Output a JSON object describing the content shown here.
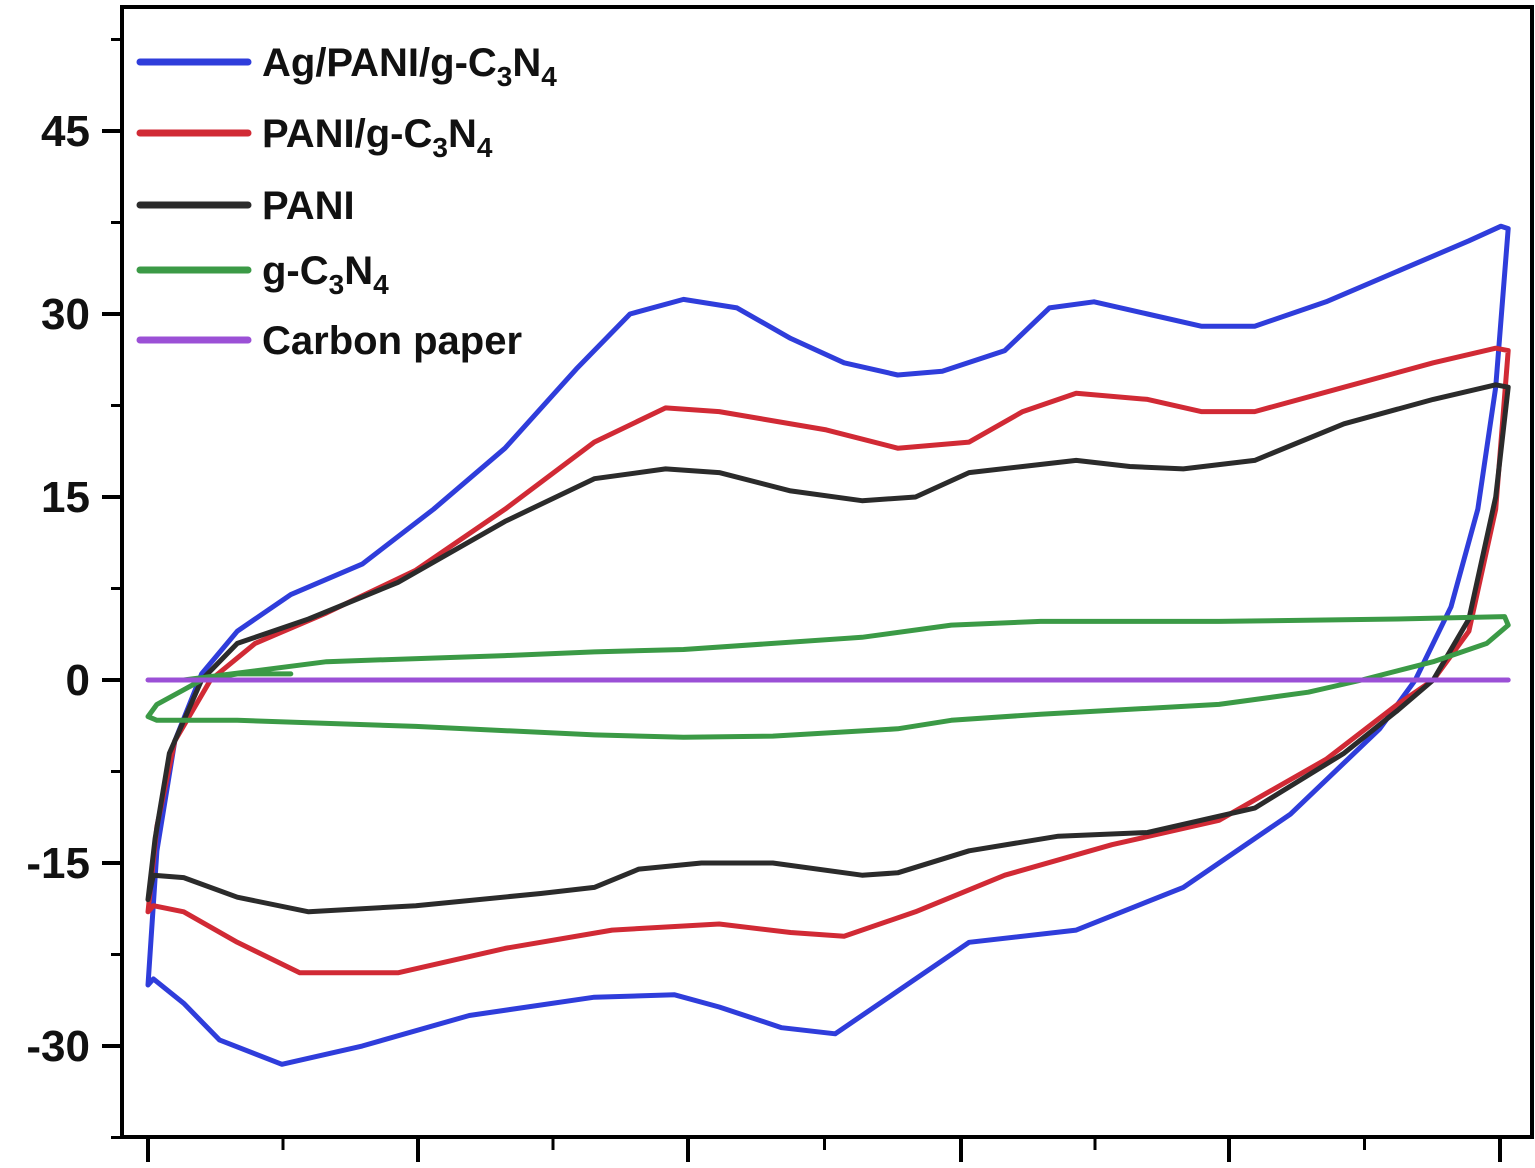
{
  "chart_data": {
    "type": "line",
    "title": "",
    "xlabel": "",
    "ylabel": "",
    "ylim": [
      -39,
      59
    ],
    "y_ticks": [
      {
        "value": 45,
        "label": "45"
      },
      {
        "value": 30,
        "label": "30"
      },
      {
        "value": 15,
        "label": "15"
      },
      {
        "value": 0,
        "label": "0"
      },
      {
        "value": -15,
        "label": "-15"
      },
      {
        "value": -30,
        "label": "-30"
      }
    ],
    "x_ticks": [
      0,
      1,
      2,
      3,
      4,
      5
    ],
    "x_tick_labels_visible": false,
    "legend_position": "top-left",
    "grid": false,
    "series": [
      {
        "key": "ag_pani_gc3n4",
        "name": "Ag/PANI/g-C3N4",
        "legend_parts": [
          "Ag/PANI/g-C",
          "3",
          "N",
          "4"
        ],
        "color": "#2f3ddb",
        "points": [
          [
            0,
            -25
          ],
          [
            0.03,
            -24.5
          ],
          [
            0.2,
            -26.5
          ],
          [
            0.4,
            -29.5
          ],
          [
            0.75,
            -31.5
          ],
          [
            1.2,
            -30
          ],
          [
            1.8,
            -27.5
          ],
          [
            2.5,
            -26
          ],
          [
            2.95,
            -25.8
          ],
          [
            3.2,
            -26.8
          ],
          [
            3.55,
            -28.5
          ],
          [
            3.85,
            -29
          ],
          [
            4.2,
            -25.5
          ],
          [
            4.6,
            -21.5
          ],
          [
            5.2,
            -20.5
          ],
          [
            5.8,
            -17
          ],
          [
            6.4,
            -11
          ],
          [
            6.9,
            -4
          ],
          [
            7.1,
            0
          ],
          [
            7.3,
            6
          ],
          [
            7.45,
            14
          ],
          [
            7.55,
            24
          ],
          [
            7.62,
            37
          ],
          [
            7.58,
            37.2
          ],
          [
            7.4,
            36
          ],
          [
            7,
            33.5
          ],
          [
            6.6,
            31
          ],
          [
            6.2,
            29
          ],
          [
            5.9,
            29
          ],
          [
            5.6,
            30
          ],
          [
            5.3,
            31
          ],
          [
            5.05,
            30.5
          ],
          [
            4.8,
            27
          ],
          [
            4.45,
            25.3
          ],
          [
            4.2,
            25
          ],
          [
            3.9,
            26
          ],
          [
            3.6,
            28
          ],
          [
            3.3,
            30.5
          ],
          [
            3.0,
            31.2
          ],
          [
            2.7,
            30
          ],
          [
            2.4,
            25.5
          ],
          [
            2.0,
            19
          ],
          [
            1.6,
            14
          ],
          [
            1.2,
            9.5
          ],
          [
            0.8,
            7
          ],
          [
            0.5,
            4
          ],
          [
            0.3,
            0.5
          ],
          [
            0.15,
            -5
          ],
          [
            0.05,
            -14
          ],
          [
            0,
            -25
          ]
        ]
      },
      {
        "key": "pani_gc3n4",
        "name": "PANI/g-C3N4",
        "legend_parts": [
          "PANI/g-C",
          "3",
          "N",
          "4"
        ],
        "color": "#d12a35",
        "points": [
          [
            0,
            -19
          ],
          [
            0.03,
            -18.5
          ],
          [
            0.2,
            -19
          ],
          [
            0.5,
            -21.5
          ],
          [
            0.85,
            -24
          ],
          [
            1.4,
            -24
          ],
          [
            2.0,
            -22
          ],
          [
            2.6,
            -20.5
          ],
          [
            3.2,
            -20
          ],
          [
            3.6,
            -20.7
          ],
          [
            3.9,
            -21
          ],
          [
            4.3,
            -19
          ],
          [
            4.8,
            -16
          ],
          [
            5.4,
            -13.5
          ],
          [
            6.0,
            -11.5
          ],
          [
            6.6,
            -6.5
          ],
          [
            7.0,
            -2
          ],
          [
            7.2,
            0
          ],
          [
            7.4,
            4
          ],
          [
            7.55,
            14
          ],
          [
            7.62,
            27
          ],
          [
            7.55,
            27.2
          ],
          [
            7.2,
            26
          ],
          [
            6.7,
            24
          ],
          [
            6.2,
            22
          ],
          [
            5.9,
            22
          ],
          [
            5.6,
            23
          ],
          [
            5.2,
            23.5
          ],
          [
            4.9,
            22
          ],
          [
            4.6,
            19.5
          ],
          [
            4.2,
            19
          ],
          [
            3.8,
            20.5
          ],
          [
            3.2,
            22
          ],
          [
            2.9,
            22.3
          ],
          [
            2.5,
            19.5
          ],
          [
            2.0,
            14
          ],
          [
            1.5,
            9
          ],
          [
            1.0,
            5.5
          ],
          [
            0.6,
            3
          ],
          [
            0.35,
            0
          ],
          [
            0.15,
            -5
          ],
          [
            0.05,
            -12
          ],
          [
            0,
            -19
          ]
        ]
      },
      {
        "key": "pani",
        "name": "PANI",
        "legend_parts": [
          "PANI"
        ],
        "color": "#2b2b2b",
        "points": [
          [
            0,
            -18
          ],
          [
            0.03,
            -16
          ],
          [
            0.2,
            -16.2
          ],
          [
            0.5,
            -17.8
          ],
          [
            0.9,
            -19
          ],
          [
            1.5,
            -18.5
          ],
          [
            2.2,
            -17.5
          ],
          [
            2.5,
            -17
          ],
          [
            2.75,
            -15.5
          ],
          [
            3.1,
            -15
          ],
          [
            3.5,
            -15
          ],
          [
            4.0,
            -16
          ],
          [
            4.2,
            -15.8
          ],
          [
            4.6,
            -14
          ],
          [
            5.1,
            -12.8
          ],
          [
            5.6,
            -12.5
          ],
          [
            6.2,
            -10.5
          ],
          [
            6.7,
            -6
          ],
          [
            7.0,
            -2.5
          ],
          [
            7.2,
            0
          ],
          [
            7.4,
            5
          ],
          [
            7.55,
            15
          ],
          [
            7.62,
            24
          ],
          [
            7.55,
            24.2
          ],
          [
            7.2,
            23
          ],
          [
            6.7,
            21
          ],
          [
            6.2,
            18
          ],
          [
            5.8,
            17.3
          ],
          [
            5.5,
            17.5
          ],
          [
            5.2,
            18
          ],
          [
            4.9,
            17.5
          ],
          [
            4.6,
            17
          ],
          [
            4.3,
            15
          ],
          [
            4.0,
            14.7
          ],
          [
            3.6,
            15.5
          ],
          [
            3.2,
            17
          ],
          [
            2.9,
            17.3
          ],
          [
            2.5,
            16.5
          ],
          [
            2.0,
            13
          ],
          [
            1.4,
            8
          ],
          [
            0.9,
            5
          ],
          [
            0.5,
            3
          ],
          [
            0.3,
            0
          ],
          [
            0.12,
            -6
          ],
          [
            0.04,
            -13
          ],
          [
            0,
            -18
          ]
        ]
      },
      {
        "key": "gc3n4",
        "name": "g-C3N4",
        "legend_parts": [
          "g-C",
          "3",
          "N",
          "4"
        ],
        "color": "#3b9a46",
        "points": [
          [
            0.2,
            0
          ],
          [
            1.0,
            1.5
          ],
          [
            2.0,
            2.0
          ],
          [
            2.5,
            2.3
          ],
          [
            3.0,
            2.5
          ],
          [
            4.0,
            3.5
          ],
          [
            4.5,
            4.5
          ],
          [
            5.0,
            4.8
          ],
          [
            5.5,
            4.8
          ],
          [
            6.0,
            4.8
          ],
          [
            7.0,
            5.0
          ],
          [
            7.6,
            5.2
          ],
          [
            7.62,
            4.5
          ],
          [
            7.5,
            3
          ],
          [
            7.2,
            1.5
          ],
          [
            6.8,
            0
          ],
          [
            6.5,
            -1
          ],
          [
            6.0,
            -2
          ],
          [
            5.0,
            -2.8
          ],
          [
            4.5,
            -3.3
          ],
          [
            4.2,
            -4
          ],
          [
            3.5,
            -4.6
          ],
          [
            3.0,
            -4.7
          ],
          [
            2.5,
            -4.5
          ],
          [
            1.5,
            -3.8
          ],
          [
            0.5,
            -3.3
          ],
          [
            0.05,
            -3.3
          ],
          [
            0,
            -3
          ],
          [
            0.05,
            -2
          ],
          [
            0.2,
            -0.8
          ],
          [
            0.3,
            0
          ],
          [
            0.5,
            0.5
          ],
          [
            0.8,
            0.5
          ]
        ]
      },
      {
        "key": "carbon_paper",
        "name": "Carbon paper",
        "legend_parts": [
          "Carbon paper"
        ],
        "color": "#9b50d6",
        "points": [
          [
            0,
            0
          ],
          [
            7.62,
            0
          ]
        ]
      }
    ]
  }
}
